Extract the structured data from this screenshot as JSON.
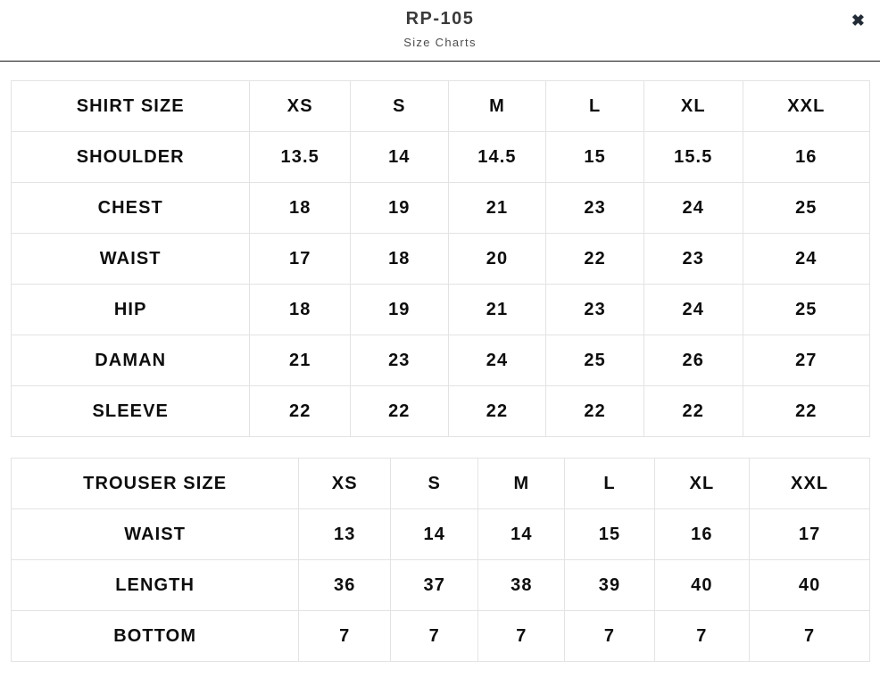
{
  "header": {
    "title": "RP-105",
    "subtitle": "Size Charts",
    "close_icon": "✖"
  },
  "shirt_table": {
    "columns": [
      "SHIRT SIZE",
      "XS",
      "S",
      "M",
      "L",
      "XL",
      "XXL"
    ],
    "rows": [
      {
        "label": "SHOULDER",
        "values": [
          "13.5",
          "14",
          "14.5",
          "15",
          "15.5",
          "16"
        ]
      },
      {
        "label": "CHEST",
        "values": [
          "18",
          "19",
          "21",
          "23",
          "24",
          "25"
        ]
      },
      {
        "label": "WAIST",
        "values": [
          "17",
          "18",
          "20",
          "22",
          "23",
          "24"
        ]
      },
      {
        "label": "HIP",
        "values": [
          "18",
          "19",
          "21",
          "23",
          "24",
          "25"
        ]
      },
      {
        "label": "DAMAN",
        "values": [
          "21",
          "23",
          "24",
          "25",
          "26",
          "27"
        ]
      },
      {
        "label": "SLEEVE",
        "values": [
          "22",
          "22",
          "22",
          "22",
          "22",
          "22"
        ]
      }
    ]
  },
  "trouser_table": {
    "columns": [
      "TROUSER SIZE",
      "XS",
      "S",
      "M",
      "L",
      "XL",
      "XXL"
    ],
    "rows": [
      {
        "label": "WAIST",
        "values": [
          "13",
          "14",
          "14",
          "15",
          "16",
          "17"
        ]
      },
      {
        "label": "LENGTH",
        "values": [
          "36",
          "37",
          "38",
          "39",
          "40",
          "40"
        ]
      },
      {
        "label": "BOTTOM",
        "values": [
          "7",
          "7",
          "7",
          "7",
          "7",
          "7"
        ]
      }
    ]
  },
  "colors": {
    "text": "#0d0d0d",
    "title_text": "#3b3b3b",
    "subtitle_text": "#4c4c4c",
    "table_border": "#e3e3e3",
    "header_divider": "#141414",
    "close_icon": "#222b36",
    "background": "#ffffff"
  }
}
